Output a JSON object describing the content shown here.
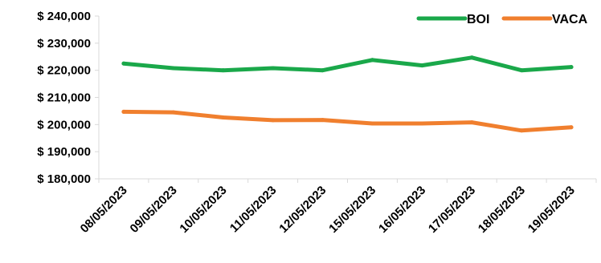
{
  "chart_data": {
    "type": "line",
    "title": "",
    "xlabel": "",
    "ylabel": "",
    "categories": [
      "08/05/2023",
      "09/05/2023",
      "10/05/2023",
      "11/05/2023",
      "12/05/2023",
      "15/05/2023",
      "16/05/2023",
      "17/05/2023",
      "18/05/2023",
      "19/05/2023"
    ],
    "y_tick_labels": [
      "$ 180,000",
      "$ 190,000",
      "$ 200,000",
      "$ 210,000",
      "$ 220,000",
      "$ 230,000",
      "$ 240,000"
    ],
    "ylim": [
      180000,
      240000
    ],
    "y_ticks": [
      180000,
      190000,
      200000,
      210000,
      220000,
      230000,
      240000
    ],
    "grid": false,
    "legend_position": "top-right",
    "series": [
      {
        "name": "BOI",
        "color": "#1aa84a",
        "values": [
          222500,
          220800,
          220000,
          220800,
          220000,
          223800,
          221800,
          224700,
          220000,
          221200
        ]
      },
      {
        "name": "VACA",
        "color": "#f07f2e",
        "values": [
          204700,
          204500,
          202600,
          201600,
          201700,
          200400,
          200400,
          200800,
          197800,
          199000
        ]
      }
    ]
  }
}
